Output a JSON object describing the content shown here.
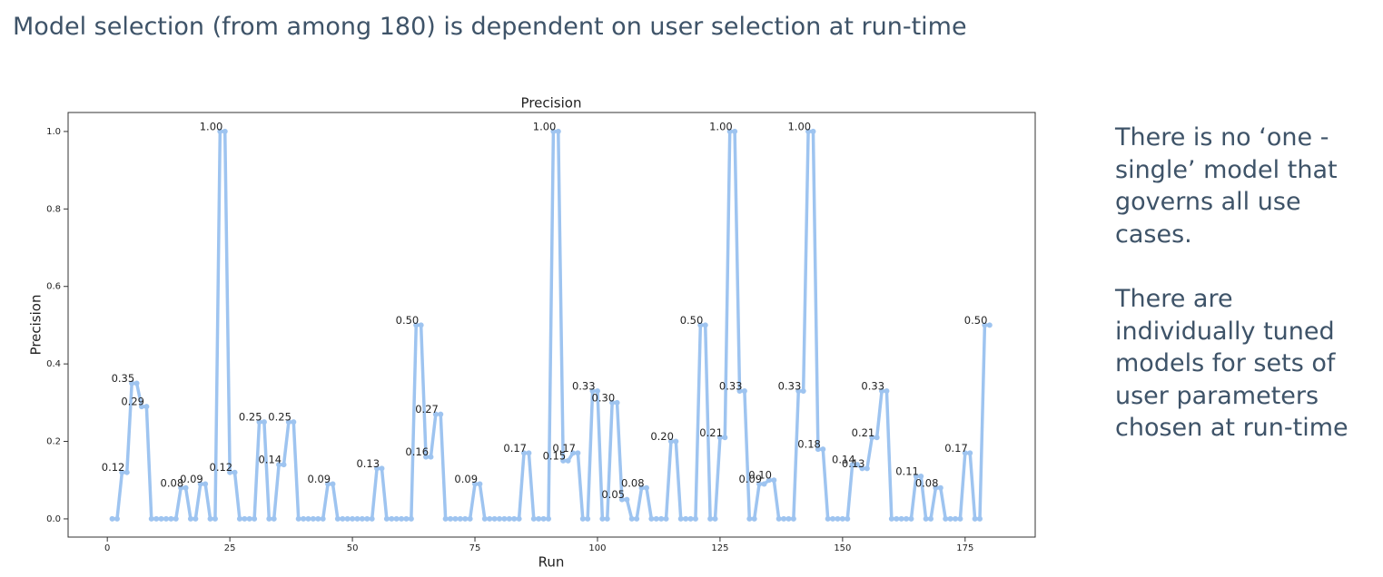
{
  "slide": {
    "title": "Model selection (from among 180) is dependent on user selection at run-time",
    "notes": [
      [
        "There is no ‘one -",
        "single’ model that",
        "governs all use",
        "cases."
      ],
      [
        "There are",
        "individually tuned",
        "models for sets of",
        "user parameters",
        "chosen at run-time"
      ]
    ]
  },
  "chart_data": {
    "type": "line",
    "title": "Precision",
    "x_label": "Run",
    "y_label": "Precision",
    "x": [
      1,
      2,
      3,
      4,
      5,
      6,
      7,
      8,
      9,
      10,
      11,
      12,
      13,
      14,
      15,
      16,
      17,
      18,
      19,
      20,
      21,
      22,
      23,
      24,
      25,
      26,
      27,
      28,
      29,
      30,
      31,
      32,
      33,
      34,
      35,
      36,
      37,
      38,
      39,
      40,
      41,
      42,
      43,
      44,
      45,
      46,
      47,
      48,
      49,
      50,
      51,
      52,
      53,
      54,
      55,
      56,
      57,
      58,
      59,
      60,
      61,
      62,
      63,
      64,
      65,
      66,
      67,
      68,
      69,
      70,
      71,
      72,
      73,
      74,
      75,
      76,
      77,
      78,
      79,
      80,
      81,
      82,
      83,
      84,
      85,
      86,
      87,
      88,
      89,
      90,
      91,
      92,
      93,
      94,
      95,
      96,
      97,
      98,
      99,
      100,
      101,
      102,
      103,
      104,
      105,
      106,
      107,
      108,
      109,
      110,
      111,
      112,
      113,
      114,
      115,
      116,
      117,
      118,
      119,
      120,
      121,
      122,
      123,
      124,
      125,
      126,
      127,
      128,
      129,
      130,
      131,
      132,
      133,
      134,
      135,
      136,
      137,
      138,
      139,
      140,
      141,
      142,
      143,
      144,
      145,
      146,
      147,
      148,
      149,
      150,
      151,
      152,
      153,
      154,
      155,
      156,
      157,
      158,
      159,
      160,
      161,
      162,
      163,
      164,
      165,
      166,
      167,
      168,
      169,
      170,
      171,
      172,
      173,
      174,
      175,
      176,
      177,
      178,
      179,
      180
    ],
    "series": [
      {
        "name": "Precision",
        "color": "#9ec4f0",
        "values": [
          0,
          0,
          0.12,
          0.12,
          0.35,
          0.35,
          0.29,
          0.29,
          0,
          0,
          0,
          0,
          0,
          0,
          0.08,
          0.08,
          0,
          0,
          0.09,
          0.09,
          0,
          0,
          1,
          1,
          0.12,
          0.12,
          0,
          0,
          0,
          0,
          0.25,
          0.25,
          0,
          0,
          0.14,
          0.14,
          0.25,
          0.25,
          0,
          0,
          0,
          0,
          0,
          0,
          0.09,
          0.09,
          0,
          0,
          0,
          0,
          0,
          0,
          0,
          0,
          0.13,
          0.13,
          0,
          0,
          0,
          0,
          0,
          0,
          0.5,
          0.5,
          0.16,
          0.16,
          0.27,
          0.27,
          0,
          0,
          0,
          0,
          0,
          0,
          0.09,
          0.09,
          0,
          0,
          0,
          0,
          0,
          0,
          0,
          0,
          0.17,
          0.17,
          0,
          0,
          0,
          0,
          1,
          1,
          0.15,
          0.15,
          0.17,
          0.17,
          0,
          0,
          0.33,
          0.33,
          0,
          0,
          0.3,
          0.3,
          0.05,
          0.05,
          0,
          0,
          0.08,
          0.08,
          0,
          0,
          0,
          0,
          0.2,
          0.2,
          0,
          0,
          0,
          0,
          0.5,
          0.5,
          0,
          0,
          0.21,
          0.21,
          1,
          1,
          0.33,
          0.33,
          0,
          0,
          0.09,
          0.09,
          0.1,
          0.1,
          0,
          0,
          0,
          0,
          0.33,
          0.33,
          1,
          1,
          0.18,
          0.18,
          0,
          0,
          0,
          0,
          0,
          0.14,
          0.14,
          0.13,
          0.13,
          0.21,
          0.21,
          0.33,
          0.33,
          0,
          0,
          0,
          0,
          0,
          0.11,
          0.11,
          0,
          0,
          0.08,
          0.08,
          0,
          0,
          0,
          0,
          0.17,
          0.17,
          0,
          0,
          0.5,
          0.5
        ],
        "value_labels": [
          null,
          null,
          "0.12",
          null,
          "0.35",
          null,
          "0.29",
          null,
          null,
          null,
          null,
          null,
          null,
          null,
          "0.08",
          null,
          null,
          null,
          "0.09",
          null,
          null,
          null,
          "1.00",
          null,
          "0.12",
          null,
          null,
          null,
          null,
          null,
          "0.25",
          null,
          null,
          null,
          "0.14",
          null,
          "0.25",
          null,
          null,
          null,
          null,
          null,
          null,
          null,
          "0.09",
          null,
          null,
          null,
          null,
          null,
          null,
          null,
          null,
          null,
          "0.13",
          null,
          null,
          null,
          null,
          null,
          null,
          null,
          "0.50",
          null,
          "0.16",
          null,
          "0.27",
          null,
          null,
          null,
          null,
          null,
          null,
          null,
          "0.09",
          null,
          null,
          null,
          null,
          null,
          null,
          null,
          null,
          null,
          "0.17",
          null,
          null,
          null,
          null,
          null,
          "1.00",
          null,
          "0.15",
          null,
          "0.17",
          null,
          null,
          null,
          "0.33",
          null,
          null,
          null,
          "0.30",
          null,
          "0.05",
          null,
          null,
          null,
          "0.08",
          null,
          null,
          null,
          null,
          null,
          "0.20",
          null,
          null,
          null,
          null,
          null,
          "0.50",
          null,
          null,
          null,
          "0.21",
          null,
          "1.00",
          null,
          "0.33",
          null,
          null,
          null,
          "0.09",
          null,
          "0.10",
          null,
          null,
          null,
          null,
          null,
          "0.33",
          null,
          "1.00",
          null,
          "0.18",
          null,
          null,
          null,
          null,
          null,
          null,
          "0.14",
          null,
          "0.13",
          null,
          "0.21",
          null,
          "0.33",
          null,
          null,
          null,
          null,
          null,
          null,
          "0.11",
          null,
          null,
          null,
          "0.08",
          null,
          null,
          null,
          null,
          null,
          "0.17",
          null,
          null,
          null,
          "0.50",
          null
        ]
      }
    ],
    "xlim": [
      -8,
      189.3
    ],
    "ylim": [
      -0.047,
      1.049
    ],
    "xticks": [
      0,
      25,
      50,
      75,
      100,
      125,
      150,
      175
    ],
    "yticks": [
      {
        "value": 0,
        "label": "0.0"
      },
      0.2,
      0.4,
      0.6,
      0.8,
      {
        "value": 1,
        "label": "1.0"
      }
    ]
  }
}
